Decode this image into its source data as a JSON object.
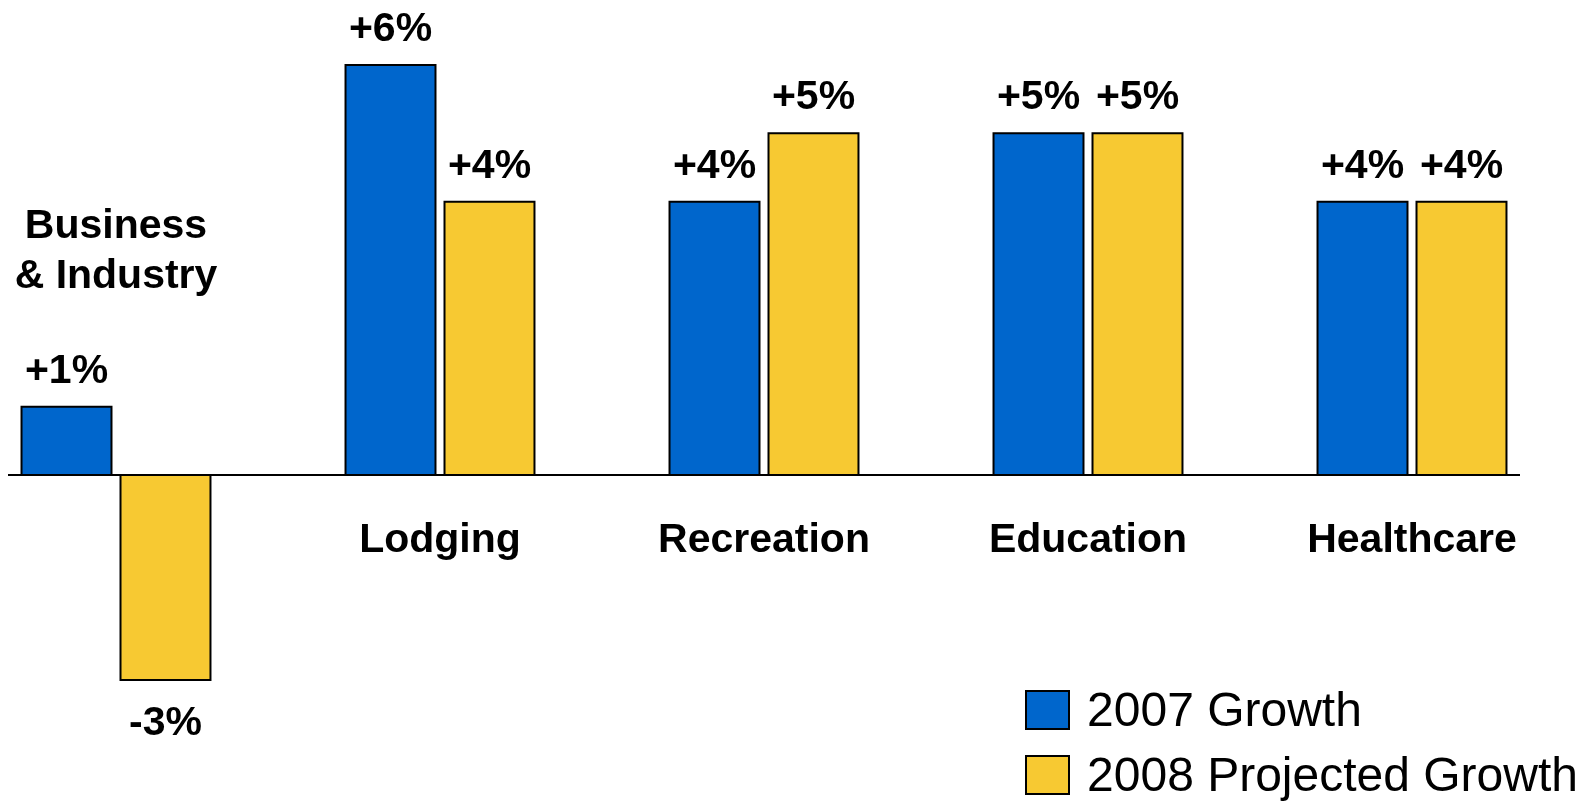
{
  "chart_data": {
    "type": "bar",
    "categories": [
      "Business & Industry",
      "Lodging",
      "Recreation",
      "Education",
      "Healthcare"
    ],
    "series": [
      {
        "name": "2007 Growth",
        "color": "#0066cc",
        "values": [
          1,
          6,
          4,
          5,
          4
        ],
        "value_labels": [
          "+1%",
          "+6%",
          "+4%",
          "+5%",
          "+4%"
        ]
      },
      {
        "name": "2008 Projected Growth",
        "color": "#f7c932",
        "values": [
          -3,
          4,
          5,
          5,
          4
        ],
        "value_labels": [
          "-3%",
          "+4%",
          "+5%",
          "+5%",
          "+4%"
        ]
      }
    ],
    "legend": "bottom right",
    "tick_labels": "x"
  }
}
